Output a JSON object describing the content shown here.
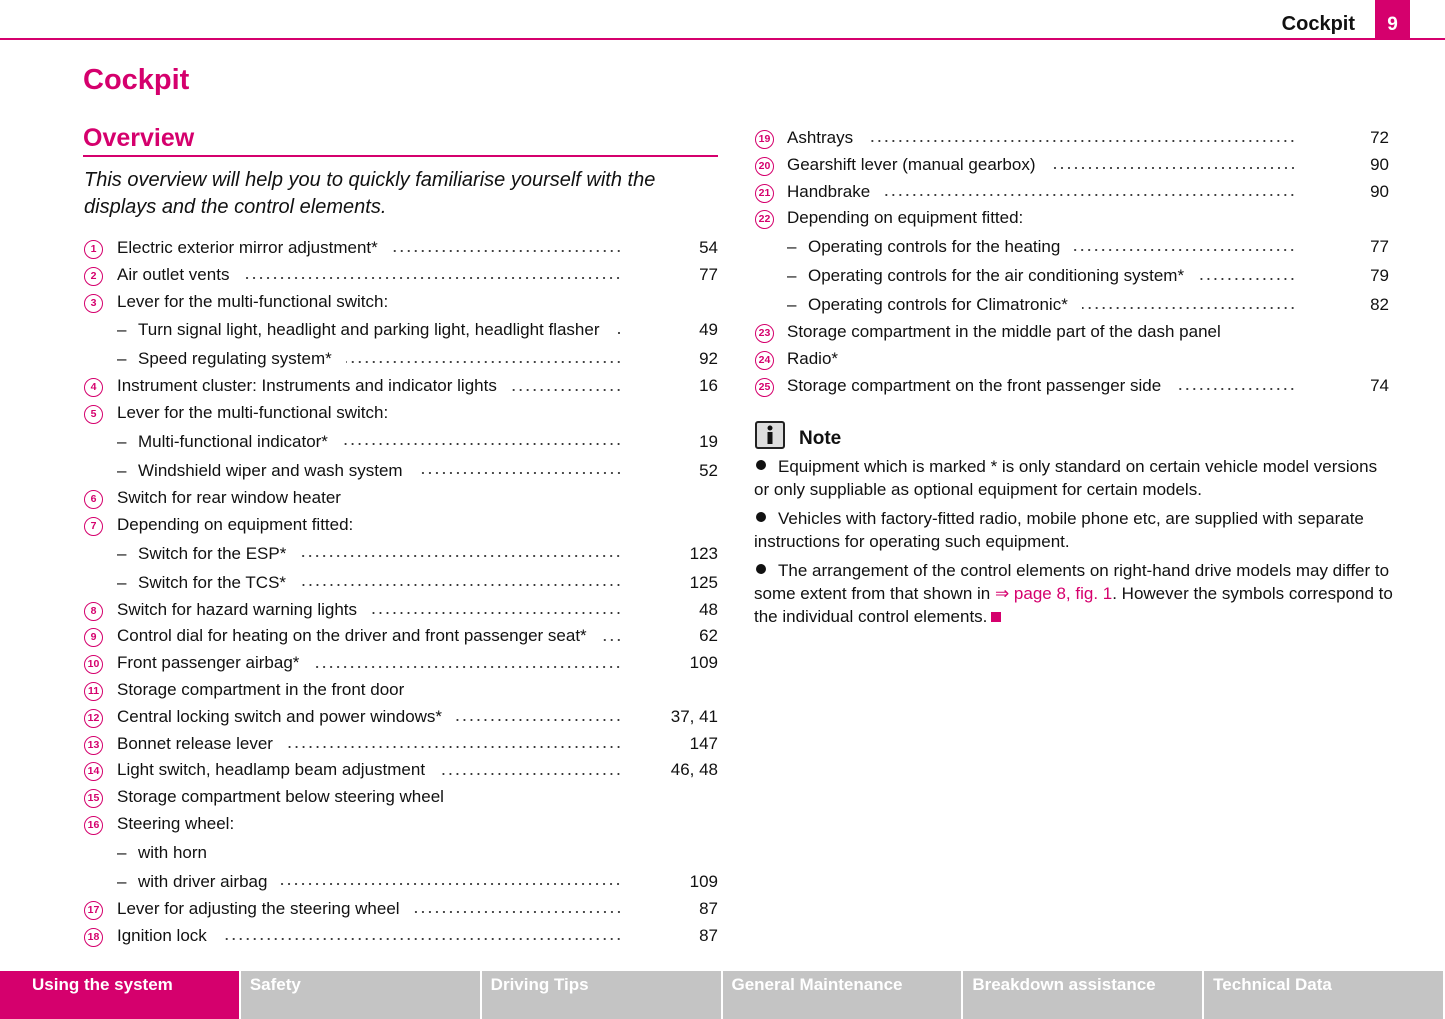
{
  "header": {
    "section": "Cockpit",
    "page": "9"
  },
  "title": "Cockpit",
  "subtitle": "Overview",
  "intro": "This overview will help you to quickly familiarise yourself with the displays and the control elements.",
  "left_column": {
    "items": [
      {
        "num": "1",
        "label": "Electric exterior mirror adjustment*",
        "page": "54"
      },
      {
        "num": "2",
        "label": "Air outlet vents",
        "page": "77"
      },
      {
        "num": "3",
        "label": "Lever for the multi-functional switch:",
        "subitems": [
          {
            "label": "Turn signal light, headlight and parking light, headlight flasher",
            "page": "49"
          },
          {
            "label": "Speed regulating system*",
            "page": "92"
          }
        ]
      },
      {
        "num": "4",
        "label": "Instrument cluster: Instruments and indicator lights",
        "page": "16"
      },
      {
        "num": "5",
        "label": "Lever for the multi-functional switch:",
        "subitems": [
          {
            "label": "Multi-functional indicator*",
            "page": "19"
          },
          {
            "label": "Windshield wiper and wash system",
            "page": "52"
          }
        ]
      },
      {
        "num": "6",
        "label": "Switch for rear window heater"
      },
      {
        "num": "7",
        "label": "Depending on equipment fitted:",
        "subitems": [
          {
            "label": "Switch for the ESP*",
            "page": "123"
          },
          {
            "label": "Switch for the TCS*",
            "page": "125"
          }
        ]
      },
      {
        "num": "8",
        "label": "Switch for hazard warning lights",
        "page": "48"
      },
      {
        "num": "9",
        "label": "Control dial for heating on the driver and front passenger seat*",
        "page": "62"
      },
      {
        "num": "10",
        "label": "Front passenger airbag*",
        "page": "109"
      },
      {
        "num": "11",
        "label": "Storage compartment in the front door"
      },
      {
        "num": "12",
        "label": "Central locking switch and power windows*",
        "page": "37, 41"
      },
      {
        "num": "13",
        "label": "Bonnet release lever",
        "page": "147"
      },
      {
        "num": "14",
        "label": "Light switch, headlamp beam adjustment",
        "page": "46, 48"
      },
      {
        "num": "15",
        "label": "Storage compartment below steering wheel"
      },
      {
        "num": "16",
        "label": "Steering wheel:",
        "subitems": [
          {
            "label": "with horn"
          },
          {
            "label": "with driver airbag",
            "page": "109"
          }
        ]
      },
      {
        "num": "17",
        "label": "Lever for adjusting the steering wheel",
        "page": "87"
      },
      {
        "num": "18",
        "label": "Ignition lock",
        "page": "87"
      }
    ]
  },
  "right_column": {
    "items": [
      {
        "num": "19",
        "label": "Ashtrays",
        "page": "72"
      },
      {
        "num": "20",
        "label": "Gearshift lever (manual gearbox)",
        "page": "90"
      },
      {
        "num": "21",
        "label": "Handbrake",
        "page": "90"
      },
      {
        "num": "22",
        "label": "Depending on equipment fitted:",
        "subitems": [
          {
            "label": "Operating controls for the heating",
            "page": "77"
          },
          {
            "label": "Operating controls for the air conditioning system*",
            "page": "79"
          },
          {
            "label": "Operating controls for Climatronic*",
            "page": "82"
          }
        ]
      },
      {
        "num": "23",
        "label": "Storage compartment in the middle part of the dash panel"
      },
      {
        "num": "24",
        "label": "Radio*"
      },
      {
        "num": "25",
        "label": "Storage compartment on the front passenger side",
        "page": "74"
      }
    ],
    "note": {
      "title": "Note",
      "bullets": [
        {
          "text": "Equipment which is marked * is only standard on certain vehicle model versions or only suppliable as optional equipment for certain models."
        },
        {
          "text": "Vehicles with factory-fitted radio, mobile phone etc, are supplied with separate instructions for operating such equipment."
        },
        {
          "text": "The arrangement of the control elements on right-hand drive models may differ to some extent from that shown in ",
          "link": "⇒ page 8, fig. 1",
          "text_after": ". However the symbols correspond to the individual control elements."
        }
      ]
    }
  },
  "footer_tabs": [
    "Using the system",
    "Safety",
    "Driving Tips",
    "General Maintenance",
    "Breakdown assistance",
    "Technical Data"
  ]
}
